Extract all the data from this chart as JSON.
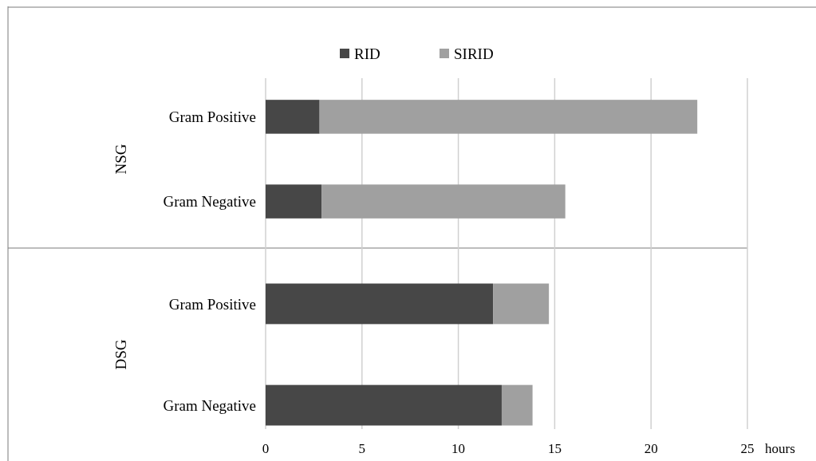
{
  "chart_data": [
    {
      "type": "bar",
      "orientation": "horizontal",
      "stacked": true,
      "ylabel": "NSG",
      "categories": [
        "Gram Positive",
        "Gram Negative"
      ],
      "series": [
        {
          "name": "RID",
          "color": "#474747",
          "values": [
            2.8,
            2.9
          ]
        },
        {
          "name": "SIRID",
          "color": "#a0a0a0",
          "values": [
            19.6,
            12.65
          ]
        }
      ],
      "xlim": [
        0,
        25
      ],
      "xticks": [
        0,
        5,
        10,
        15,
        20,
        25
      ],
      "grid": "x",
      "legend": "top",
      "tick_labels": "y"
    },
    {
      "type": "bar",
      "orientation": "horizontal",
      "stacked": true,
      "ylabel": "DSG",
      "xlabel": "hours",
      "categories": [
        "Gram Positive",
        "Gram Negative"
      ],
      "series": [
        {
          "color": "#474747",
          "values": [
            11.8,
            12.25
          ]
        },
        {
          "color": "#a0a0a0",
          "values": [
            2.9,
            1.6
          ]
        }
      ],
      "xlim": [
        0,
        25
      ],
      "xticks": [
        0,
        5,
        10,
        15,
        20,
        25
      ],
      "grid": "x"
    }
  ]
}
